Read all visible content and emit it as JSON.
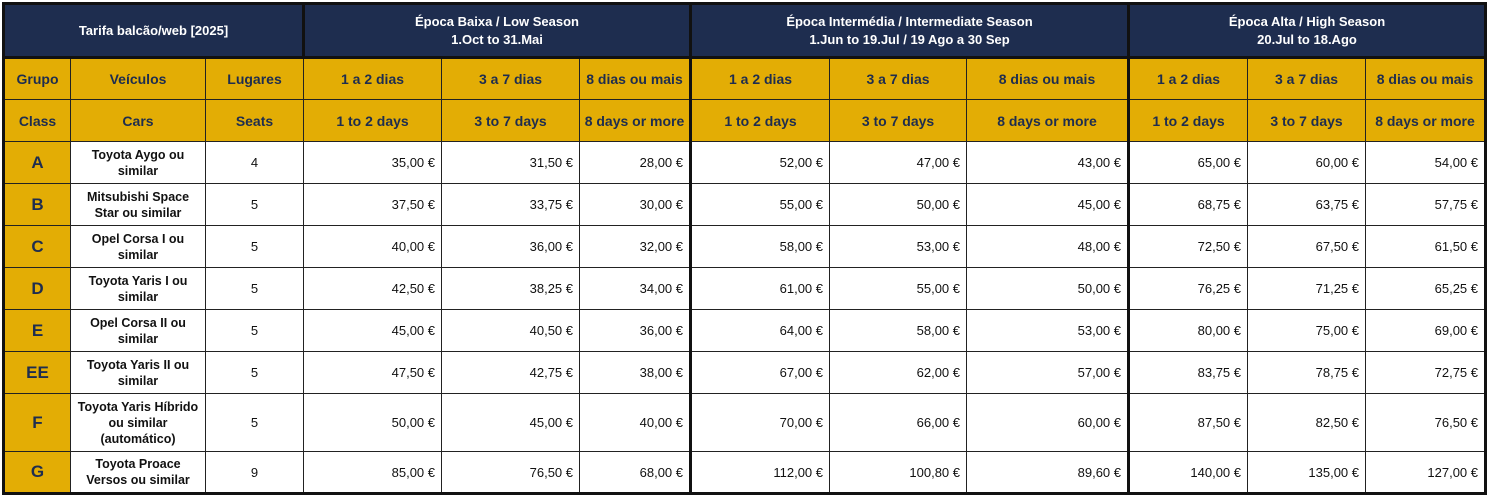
{
  "title": "Tarifa balcão/web [2025]",
  "seasons": [
    {
      "name": "Época Baixa / Low Season",
      "dates": "1.Oct to 31.Mai"
    },
    {
      "name": "Época Intermédia / Intermediate Season",
      "dates": "1.Jun to 19.Jul / 19 Ago a 30 Sep"
    },
    {
      "name": "Época Alta / High Season",
      "dates": "20.Jul to 18.Ago"
    }
  ],
  "headers_pt": {
    "group": "Grupo",
    "vehicles": "Veículos",
    "seats": "Lugares",
    "periods": [
      "1 a 2 dias",
      "3 a 7 dias",
      "8 dias ou mais"
    ]
  },
  "headers_en": {
    "group": "Class",
    "vehicles": "Cars",
    "seats": "Seats",
    "periods": [
      "1 to 2  days",
      "3 to 7 days",
      "8 days or more"
    ]
  },
  "rows": [
    {
      "class": "A",
      "car": "Toyota Aygo ou similar",
      "seats": "4",
      "prices": [
        "35,00 €",
        "31,50 €",
        "28,00 €",
        "52,00 €",
        "47,00 €",
        "43,00 €",
        "65,00 €",
        "60,00 €",
        "54,00 €"
      ]
    },
    {
      "class": "B",
      "car": "Mitsubishi Space Star ou similar",
      "seats": "5",
      "prices": [
        "37,50 €",
        "33,75 €",
        "30,00 €",
        "55,00 €",
        "50,00 €",
        "45,00 €",
        "68,75 €",
        "63,75 €",
        "57,75 €"
      ]
    },
    {
      "class": "C",
      "car": "Opel Corsa I ou similar",
      "seats": "5",
      "prices": [
        "40,00 €",
        "36,00 €",
        "32,00 €",
        "58,00 €",
        "53,00 €",
        "48,00 €",
        "72,50 €",
        "67,50 €",
        "61,50 €"
      ]
    },
    {
      "class": "D",
      "car": "Toyota Yaris I ou similar",
      "seats": "5",
      "prices": [
        "42,50 €",
        "38,25 €",
        "34,00 €",
        "61,00 €",
        "55,00 €",
        "50,00 €",
        "76,25 €",
        "71,25 €",
        "65,25 €"
      ]
    },
    {
      "class": "E",
      "car": "Opel Corsa II ou similar",
      "seats": "5",
      "prices": [
        "45,00 €",
        "40,50 €",
        "36,00 €",
        "64,00 €",
        "58,00 €",
        "53,00 €",
        "80,00 €",
        "75,00 €",
        "69,00 €"
      ]
    },
    {
      "class": "EE",
      "car": "Toyota Yaris II ou similar",
      "seats": "5",
      "prices": [
        "47,50 €",
        "42,75 €",
        "38,00 €",
        "67,00 €",
        "62,00 €",
        "57,00 €",
        "83,75 €",
        "78,75 €",
        "72,75 €"
      ]
    },
    {
      "class": "F",
      "car": "Toyota Yaris Híbrido ou similar (automático)",
      "seats": "5",
      "prices": [
        "50,00 €",
        "45,00 €",
        "40,00 €",
        "70,00 €",
        "66,00 €",
        "60,00 €",
        "87,50 €",
        "82,50 €",
        "76,50 €"
      ]
    },
    {
      "class": "G",
      "car": "Toyota Proace Versos ou similar",
      "seats": "9",
      "prices": [
        "85,00 €",
        "76,50 €",
        "68,00 €",
        "112,00 €",
        "100,80 €",
        "89,60 €",
        "140,00 €",
        "135,00 €",
        "127,00 €"
      ]
    }
  ]
}
